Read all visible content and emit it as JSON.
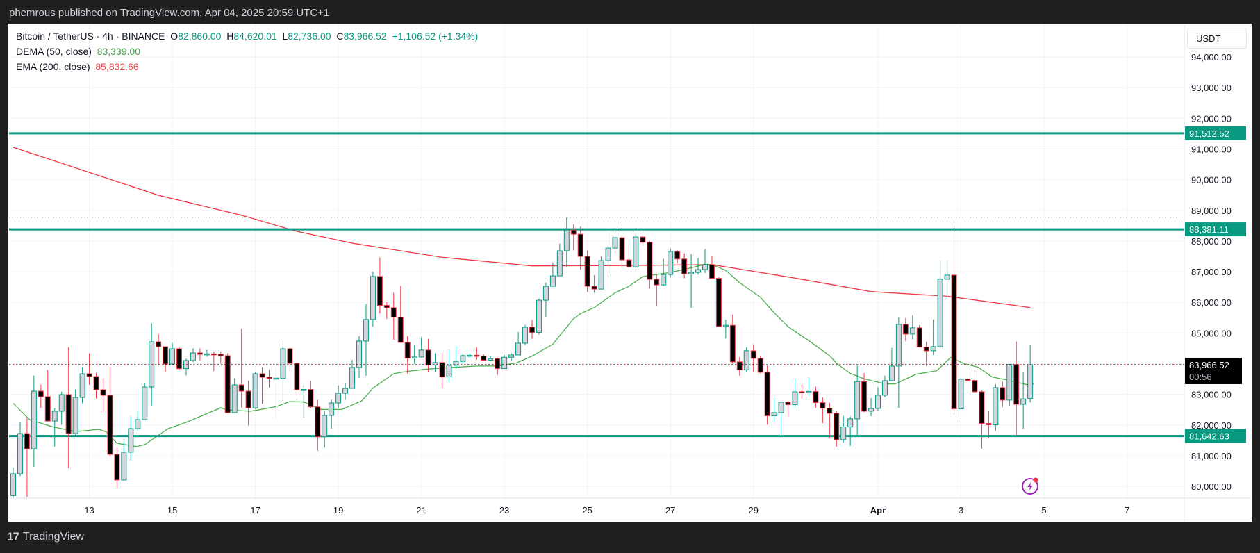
{
  "header": {
    "published": "phemrous published on TradingView.com, Apr 04, 2025 20:59 UTC+1"
  },
  "legend": {
    "symbol": "Bitcoin / TetherUS · 4h · BINANCE",
    "o_label": "O",
    "o_value": "82,860.00",
    "h_label": "H",
    "h_value": "84,620.01",
    "l_label": "L",
    "l_value": "82,736.00",
    "c_label": "C",
    "c_value": "83,966.52",
    "change": "+1,106.52 (+1.34%)",
    "dema_label": "DEMA (50, close)",
    "dema_value": "83,339.00",
    "ema_label": "EMA (200, close)",
    "ema_value": "85,832.66"
  },
  "price_axis": {
    "currency": "USDT",
    "ticks": [
      {
        "value": 94000,
        "label": "94,000.00"
      },
      {
        "value": 93000,
        "label": "93,000.00"
      },
      {
        "value": 92000,
        "label": "92,000.00"
      },
      {
        "value": 91000,
        "label": "91,000.00"
      },
      {
        "value": 90000,
        "label": "90,000.00"
      },
      {
        "value": 89000,
        "label": "89,000.00"
      },
      {
        "value": 88000,
        "label": "88,000.00"
      },
      {
        "value": 87000,
        "label": "87,000.00"
      },
      {
        "value": 86000,
        "label": "86,000.00"
      },
      {
        "value": 85000,
        "label": "85,000.00"
      },
      {
        "value": 83000,
        "label": "83,000.00"
      },
      {
        "value": 82000,
        "label": "82,000.00"
      },
      {
        "value": 81000,
        "label": "81,000.00"
      },
      {
        "value": 80000,
        "label": "80,000.00"
      }
    ],
    "grid_extra": [
      84000
    ],
    "current_price": {
      "value": 83966.52,
      "label": "83,966.52",
      "countdown": "00:56"
    }
  },
  "time_axis": {
    "ticks": [
      {
        "bar": 11,
        "label": "13"
      },
      {
        "bar": 23,
        "label": "15"
      },
      {
        "bar": 35,
        "label": "17"
      },
      {
        "bar": 47,
        "label": "19"
      },
      {
        "bar": 59,
        "label": "21"
      },
      {
        "bar": 71,
        "label": "23"
      },
      {
        "bar": 83,
        "label": "25"
      },
      {
        "bar": 95,
        "label": "27"
      },
      {
        "bar": 107,
        "label": "29"
      },
      {
        "bar": 125,
        "label": "Apr",
        "bold": true
      },
      {
        "bar": 137,
        "label": "3"
      },
      {
        "bar": 149,
        "label": "5"
      },
      {
        "bar": 161,
        "label": "7"
      }
    ]
  },
  "footer": {
    "brand": "TradingView"
  },
  "colors": {
    "up": "#089981",
    "down": "#f23645",
    "up_fill": "#d1d4dc",
    "down_fill": "#000000",
    "dema": "#4caf50",
    "ema": "#f23645",
    "level": "#089981",
    "alert": "#9c27b0"
  },
  "chart_data": {
    "type": "candlestick",
    "title": "Bitcoin / TetherUS · 4h · BINANCE",
    "ylim": [
      79617,
      95000
    ],
    "levels": [
      {
        "value": 91512.52,
        "label": "91,512.52"
      },
      {
        "value": 88381.11,
        "label": "88,381.11"
      },
      {
        "value": 81642.63,
        "label": "81,642.63"
      }
    ],
    "high_marker": 88773,
    "ohlc": [
      [
        79700,
        80615,
        79500,
        80410
      ],
      [
        80410,
        82086,
        80334,
        81723
      ],
      [
        81723,
        82222,
        79655,
        81225
      ],
      [
        81225,
        83611,
        80636,
        83105
      ],
      [
        83105,
        83316,
        82561,
        82924
      ],
      [
        82924,
        83792,
        82108,
        82131
      ],
      [
        82131,
        82546,
        81300,
        82448
      ],
      [
        82448,
        83090,
        82010,
        82992
      ],
      [
        82992,
        84540,
        80598,
        81723
      ],
      [
        81723,
        83158,
        81655,
        82901
      ],
      [
        82901,
        83883,
        82712,
        83671
      ],
      [
        83671,
        84336,
        83316,
        83581
      ],
      [
        83581,
        83701,
        82863,
        83150
      ],
      [
        83150,
        83520,
        82410,
        82969
      ],
      [
        82969,
        83905,
        80976,
        81044
      ],
      [
        81044,
        81255,
        79941,
        80206
      ],
      [
        80206,
        81482,
        80206,
        81112
      ],
      [
        81112,
        82275,
        80840,
        81882
      ],
      [
        81882,
        82448,
        81784,
        82176
      ],
      [
        82176,
        83354,
        82176,
        83241
      ],
      [
        83241,
        85317,
        82637,
        84713
      ],
      [
        84713,
        84955,
        83973,
        84555
      ],
      [
        84555,
        84555,
        83732,
        83988
      ],
      [
        83988,
        84675,
        83988,
        84487
      ],
      [
        84487,
        84547,
        83800,
        83837
      ],
      [
        83837,
        84170,
        83618,
        84102
      ],
      [
        84102,
        84502,
        84050,
        84351
      ],
      [
        84351,
        84502,
        84094,
        84306
      ],
      [
        84306,
        84450,
        84230,
        84320
      ],
      [
        84320,
        84400,
        83758,
        84310
      ],
      [
        84310,
        84400,
        84000,
        84260
      ],
      [
        84260,
        84336,
        82403,
        82403
      ],
      [
        82403,
        83520,
        82403,
        83309
      ],
      [
        83309,
        85136,
        82576,
        83105
      ],
      [
        83105,
        83445,
        81980,
        82561
      ],
      [
        82561,
        83717,
        82520,
        83671
      ],
      [
        83671,
        83883,
        82690,
        83558
      ],
      [
        83558,
        83800,
        83226,
        83520
      ],
      [
        83520,
        83973,
        82260,
        83530
      ],
      [
        83520,
        84766,
        82788,
        84487
      ],
      [
        84487,
        84510,
        83732,
        84011
      ],
      [
        84011,
        84011,
        82962,
        83150
      ],
      [
        83150,
        83294,
        82252,
        83160
      ],
      [
        83160,
        83445,
        82540,
        82591
      ],
      [
        82591,
        82826,
        81150,
        81617
      ],
      [
        81617,
        82463,
        81263,
        82312
      ],
      [
        82312,
        82826,
        81874,
        82720
      ],
      [
        82720,
        83294,
        82550,
        83037
      ],
      [
        83037,
        83354,
        82820,
        83196
      ],
      [
        83196,
        84124,
        83196,
        83875
      ],
      [
        83875,
        84904,
        83530,
        84738
      ],
      [
        84738,
        85946,
        83606,
        85441
      ],
      [
        85441,
        87003,
        85207,
        86845
      ],
      [
        86845,
        87464,
        85637,
        85901
      ],
      [
        85901,
        86000,
        85456,
        85826
      ],
      [
        85826,
        86309,
        84776,
        85516
      ],
      [
        85516,
        86535,
        84693,
        84693
      ],
      [
        84693,
        84904,
        83674,
        84180
      ],
      [
        84180,
        84610,
        83991,
        84218
      ],
      [
        84218,
        84859,
        84200,
        84444
      ],
      [
        84444,
        84814,
        83719,
        83953
      ],
      [
        83953,
        84338,
        83730,
        84036
      ],
      [
        84036,
        84361,
        83191,
        83568
      ],
      [
        83568,
        84452,
        83395,
        83946
      ],
      [
        83946,
        84580,
        83840,
        84074
      ],
      [
        84074,
        84300,
        84000,
        84263
      ],
      [
        84263,
        84330,
        84180,
        84275
      ],
      [
        84275,
        84535,
        84130,
        84250
      ],
      [
        84250,
        84300,
        84110,
        84112
      ],
      [
        84112,
        84240,
        84080,
        84165
      ],
      [
        84165,
        84200,
        83636,
        83840
      ],
      [
        83840,
        84285,
        83830,
        84210
      ],
      [
        84210,
        84340,
        84080,
        84285
      ],
      [
        84285,
        85033,
        84285,
        84670
      ],
      [
        84670,
        85267,
        84600,
        85191
      ],
      [
        85191,
        85426,
        84814,
        85018
      ],
      [
        85018,
        86124,
        84950,
        86071
      ],
      [
        86071,
        86644,
        85531,
        86524
      ],
      [
        86524,
        87301,
        86524,
        86863
      ],
      [
        86863,
        87913,
        86863,
        87679
      ],
      [
        87679,
        88773,
        87165,
        88358
      ],
      [
        88358,
        88547,
        87694,
        88222
      ],
      [
        88222,
        88471,
        87067,
        87498
      ],
      [
        87498,
        87686,
        86335,
        86524
      ],
      [
        86524,
        86886,
        86313,
        86433
      ],
      [
        86433,
        87505,
        86433,
        87362
      ],
      [
        87362,
        88260,
        86946,
        87769
      ],
      [
        87769,
        88320,
        87603,
        88109
      ],
      [
        88109,
        88547,
        87150,
        87384
      ],
      [
        87384,
        87890,
        87037,
        87158
      ],
      [
        87158,
        88275,
        87060,
        88132
      ],
      [
        88132,
        88275,
        87860,
        87958
      ],
      [
        87958,
        87996,
        86448,
        86750
      ],
      [
        86750,
        86939,
        85882,
        86569
      ],
      [
        86569,
        87414,
        86530,
        86909
      ],
      [
        86909,
        87754,
        86810,
        87656
      ],
      [
        87656,
        87700,
        87263,
        87414
      ],
      [
        87414,
        87596,
        86788,
        86931
      ],
      [
        86931,
        87573,
        85814,
        86977
      ],
      [
        86977,
        87445,
        86900,
        87067
      ],
      [
        87067,
        87736,
        86960,
        87230
      ],
      [
        87230,
        87524,
        86784,
        86784
      ],
      [
        86784,
        86830,
        85200,
        85214
      ],
      [
        85214,
        85440,
        84821,
        85252
      ],
      [
        85252,
        85599,
        84000,
        84059
      ],
      [
        84059,
        84218,
        83604,
        83795
      ],
      [
        83795,
        84535,
        83720,
        84421
      ],
      [
        84421,
        84633,
        83734,
        84172
      ],
      [
        84172,
        84260,
        83680,
        83719
      ],
      [
        83719,
        83938,
        82013,
        82300
      ],
      [
        82300,
        82881,
        82104,
        82406
      ],
      [
        82406,
        82745,
        81658,
        82745
      ],
      [
        82745,
        82790,
        82262,
        82662
      ],
      [
        82662,
        83493,
        82550,
        83085
      ],
      [
        83085,
        83319,
        82866,
        83070
      ],
      [
        83070,
        83546,
        82960,
        83095
      ],
      [
        83095,
        83250,
        82560,
        82730
      ],
      [
        82730,
        82900,
        82058,
        82549
      ],
      [
        82549,
        82730,
        81583,
        82383
      ],
      [
        82383,
        82450,
        81295,
        81522
      ],
      [
        81522,
        82300,
        81420,
        81937
      ],
      [
        81937,
        82280,
        81319,
        82202
      ],
      [
        82202,
        83938,
        81658,
        83417
      ],
      [
        83417,
        83696,
        82420,
        82451
      ],
      [
        82451,
        82880,
        82290,
        82542
      ],
      [
        82542,
        83244,
        82460,
        82972
      ],
      [
        82972,
        83606,
        82904,
        83447
      ],
      [
        83447,
        84512,
        83430,
        83923
      ],
      [
        83923,
        85508,
        82556,
        85282
      ],
      [
        85282,
        85486,
        84731,
        84965
      ],
      [
        84965,
        85576,
        84791,
        85169
      ],
      [
        85169,
        85259,
        84520,
        84542
      ],
      [
        84542,
        84716,
        83923,
        84421
      ],
      [
        84421,
        85441,
        84285,
        84557
      ],
      [
        84557,
        87351,
        84500,
        86754
      ],
      [
        86754,
        87351,
        86211,
        86890
      ],
      [
        86890,
        88506,
        82337,
        82526
      ],
      [
        82526,
        83998,
        82194,
        83493
      ],
      [
        83493,
        83750,
        83009,
        83455
      ],
      [
        83455,
        83795,
        83060,
        83085
      ],
      [
        83085,
        83140,
        81228,
        82051
      ],
      [
        82051,
        82451,
        81568,
        82005
      ],
      [
        82005,
        83334,
        81809,
        83221
      ],
      [
        83221,
        83410,
        82587,
        82813
      ],
      [
        82813,
        83976,
        82632,
        83976
      ],
      [
        83976,
        84724,
        81658,
        82677
      ],
      [
        82677,
        83719,
        81862,
        82851
      ],
      [
        82860,
        84620.01,
        82736,
        83966.52
      ]
    ],
    "ema200": [
      [
        0,
        91055
      ],
      [
        10,
        90310
      ],
      [
        21,
        89490
      ],
      [
        33,
        88840
      ],
      [
        41,
        88315
      ],
      [
        49,
        87930
      ],
      [
        62,
        87470
      ],
      [
        75,
        87190
      ],
      [
        88,
        87200
      ],
      [
        101,
        87230
      ],
      [
        113,
        86790
      ],
      [
        124,
        86350
      ],
      [
        135,
        86200
      ],
      [
        147,
        85833
      ]
    ],
    "dema50": [
      [
        0,
        82712
      ],
      [
        2.4,
        82169
      ],
      [
        5.7,
        81942
      ],
      [
        9,
        81784
      ],
      [
        12.4,
        81859
      ],
      [
        13.4,
        81784
      ],
      [
        15,
        81406
      ],
      [
        17.8,
        81300
      ],
      [
        19,
        81360
      ],
      [
        22.4,
        81882
      ],
      [
        25,
        82086
      ],
      [
        30,
        82561
      ],
      [
        31,
        82490
      ],
      [
        34.3,
        82448
      ],
      [
        38,
        82599
      ],
      [
        40,
        82765
      ],
      [
        42,
        82750
      ],
      [
        44.5,
        82508
      ],
      [
        47.5,
        82508
      ],
      [
        50.4,
        82790
      ],
      [
        52,
        83206
      ],
      [
        55,
        83674
      ],
      [
        57,
        83750
      ],
      [
        60,
        83825
      ],
      [
        63,
        83870
      ],
      [
        67,
        83923
      ],
      [
        70,
        83923
      ],
      [
        72.7,
        84021
      ],
      [
        75,
        84248
      ],
      [
        78,
        84636
      ],
      [
        81,
        85467
      ],
      [
        82,
        85633
      ],
      [
        84,
        85829
      ],
      [
        87,
        86312
      ],
      [
        89,
        86524
      ],
      [
        91,
        86840
      ],
      [
        95,
        86977
      ],
      [
        98,
        87128
      ],
      [
        100,
        87241
      ],
      [
        101,
        87230
      ],
      [
        103,
        87041
      ],
      [
        105,
        86641
      ],
      [
        108,
        86165
      ],
      [
        110,
        85660
      ],
      [
        112,
        85207
      ],
      [
        115,
        84753
      ],
      [
        118,
        84263
      ],
      [
        119,
        84014
      ],
      [
        121,
        83681
      ],
      [
        123,
        83508
      ],
      [
        126,
        83342
      ],
      [
        127.5,
        83342
      ],
      [
        130.5,
        83659
      ],
      [
        133.5,
        83772
      ],
      [
        135.5,
        84202
      ],
      [
        137.5,
        83998
      ],
      [
        139.5,
        83885
      ],
      [
        141.5,
        83568
      ],
      [
        144,
        83455
      ],
      [
        146.5,
        83319
      ],
      [
        147.5,
        83339
      ]
    ]
  }
}
